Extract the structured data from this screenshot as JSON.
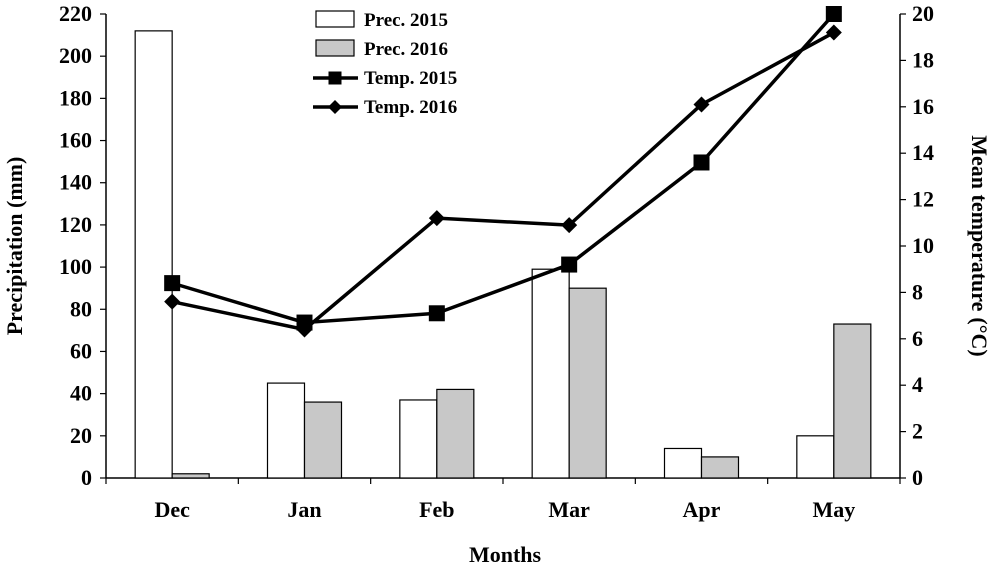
{
  "chart_data": {
    "type": "bar",
    "categories": [
      "Dec",
      "Jan",
      "Feb",
      "Mar",
      "Apr",
      "May"
    ],
    "xlabel": "Months",
    "ylabel": "Precipitation (mm)",
    "y2label_main": "Mean temperature",
    "y2label_unit": "(°C)",
    "ylim": [
      0,
      220
    ],
    "yticks": [
      0,
      20,
      40,
      60,
      80,
      100,
      120,
      140,
      160,
      180,
      200,
      220
    ],
    "y2lim": [
      0,
      20
    ],
    "y2ticks": [
      0,
      2,
      4,
      6,
      8,
      10,
      12,
      14,
      16,
      18,
      20
    ],
    "grid": false,
    "legend_position": "top-center",
    "bar_series": [
      {
        "name": "Prec. 2015",
        "color": "#ffffff",
        "values": [
          212,
          45,
          37,
          99,
          14,
          20
        ]
      },
      {
        "name": "Prec. 2016",
        "color": "#c8c8c8",
        "values": [
          2,
          36,
          42,
          90,
          10,
          73
        ]
      }
    ],
    "line_series": [
      {
        "name": "Temp. 2015",
        "marker": "square",
        "color": "#000000",
        "values": [
          8.4,
          6.7,
          7.1,
          9.2,
          13.6,
          20.0
        ]
      },
      {
        "name": "Temp. 2016",
        "marker": "diamond",
        "color": "#000000",
        "values": [
          7.6,
          6.4,
          11.2,
          10.9,
          16.1,
          19.2
        ]
      }
    ]
  }
}
